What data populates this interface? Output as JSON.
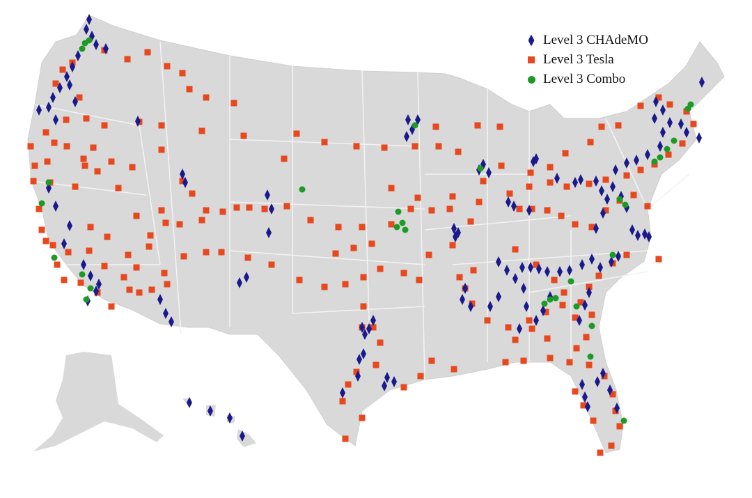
{
  "legend": [
    {
      "label": "Level 3 CHAdeMO",
      "marker": "diamond",
      "color": "#1a1a8c"
    },
    {
      "label": "Level 3 Tesla",
      "marker": "square",
      "color": "#e8481e"
    },
    {
      "label": "Level 3 Combo",
      "marker": "circle",
      "color": "#1d9a26"
    }
  ],
  "colors": {
    "land": "#d9d9d9",
    "borders": "#f2f2f2",
    "background": "#ffffff"
  },
  "regions": [
    "Contiguous United States",
    "Alaska",
    "Hawaii"
  ]
}
